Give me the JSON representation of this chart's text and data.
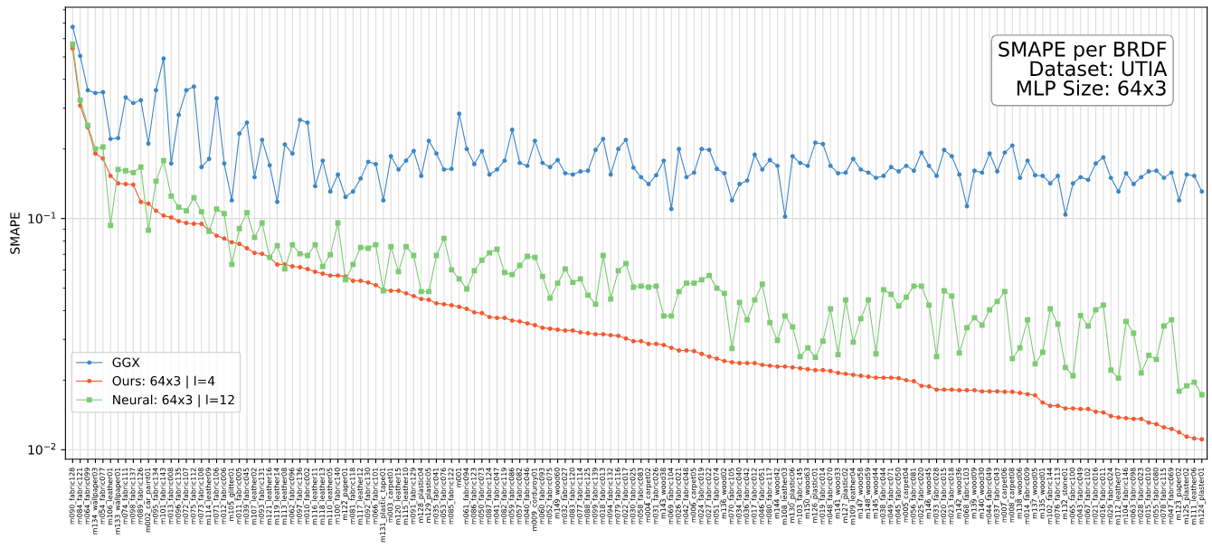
{
  "chart_data": {
    "type": "line",
    "title": "SMAPE per BRDF\nDataset: UTIA\nMLP Size: 64x3",
    "ylabel": "SMAPE",
    "categories": [
      "m090_fabric128",
      "m084_fabric121",
      "m064_fabric099",
      "m134_wallpaper03",
      "m054_fabric077",
      "m106_leather01",
      "m133_wallpaper01",
      "m074_fabric111",
      "m098_fabric137",
      "m089_fabric126",
      "m002_car_paint01",
      "m095_fabric134",
      "m101_fabric143",
      "m013_fabric008",
      "m096_fabric135",
      "m072_fabric107",
      "m075_fabric112",
      "m073_fabric108",
      "m114_leather09",
      "m071_fabric106",
      "m012_fabric006",
      "m105_glitter01",
      "m011_fabric005",
      "m039_fabric045",
      "m107_leather02",
      "m093_fabric131",
      "m121_leather16",
      "m119_leather14",
      "m113_leather08",
      "m062_fabric096",
      "m097_fabric136",
      "m010_fabric002",
      "m116_leather11",
      "m118_leather13",
      "m110_leather05",
      "m100_fabric140",
      "m122_paper01",
      "m081_fabric118",
      "m117_leather12",
      "m092_fabric130",
      "m066_fabric101",
      "m131_plastic_tape01",
      "m003_carpet01",
      "m120_leather15",
      "m115_leather10",
      "m091_fabric129",
      "m128_plastic04",
      "m129_plastic05",
      "m035_fabric041",
      "m053_fabric076",
      "m085_fabric122",
      "m001",
      "m061_fabric094",
      "m086_fabric123",
      "m050_fabric073",
      "m087_fabric124",
      "m041_fabric047",
      "m082_fabric119",
      "m059_fabric086",
      "m057_fabric082",
      "m040_fabric046",
      "m009_corduroy01",
      "m060_fabric093",
      "m052_fabric075",
      "m149_wood60",
      "m032_fabric027",
      "m083_fabric120",
      "m077_fabric114",
      "m088_fabric125",
      "m099_fabric139",
      "m018_fabric013",
      "m094_fabric132",
      "m079_fabric116",
      "m022_fabric017",
      "m030_fabric025",
      "m058_fabric083",
      "m004_carpet02",
      "m031_fabric026",
      "m143_wood38",
      "m069_fabric104",
      "m026_fabric021",
      "m042_fabric048",
      "m006_carpet05",
      "m024_fabric019",
      "m027_fabric022",
      "m051_fabric074",
      "m136_wood02",
      "m070_fabric105",
      "m034_fabric040",
      "m036_fabric042",
      "m017_fabric012",
      "m046_fabric051",
      "m080_fabric117",
      "m144_wood42",
      "m108_leather03",
      "m130_plastic06",
      "m103_fabric145",
      "m150_wood63",
      "m126_plastic01",
      "m019_fabric014",
      "m048_fabric070",
      "m141_wood33",
      "m127_plastic02",
      "m109_leather04",
      "m147_wood58",
      "m148_wood59",
      "m145_wood44",
      "m038_fabric044",
      "m049_fabric071",
      "m045_fabric050",
      "m005_carpet04",
      "m056_fabric081",
      "m025_fabric020",
      "m146_wood45",
      "m033_fabric028",
      "m020_fabric015",
      "m023_fabric018",
      "m142_wood36",
      "m068_fabric103",
      "m139_wood09",
      "m140_wood30",
      "m044_fabric049",
      "m037_fabric043",
      "m007_carpet06",
      "m008_carpet08",
      "m138_wood06",
      "m014_fabric009",
      "m137_wood05",
      "m135_wood01",
      "m102_fabric144",
      "m076_fabric113",
      "m132_stone01",
      "m065_fabric100",
      "m043_fabric049",
      "m067_fabric102",
      "m021_fabric016",
      "m016_fabric011",
      "m029_fabric024",
      "m112_leather07",
      "m104_fabric146",
      "m063_fabric098",
      "m028_fabric023",
      "m015_fabric010",
      "m055_fabric080",
      "m078_fabric115",
      "m047_fabric069",
      "m123_paper02",
      "m125_plaster02",
      "m111_leather06",
      "m124_plaster01"
    ],
    "series": [
      {
        "name": "GGX",
        "color": "#3b86c6",
        "marker": "circle",
        "values": [
          0.674,
          0.505,
          0.359,
          0.349,
          0.352,
          0.221,
          0.223,
          0.334,
          0.316,
          0.325,
          0.211,
          0.359,
          0.492,
          0.173,
          0.281,
          0.359,
          0.372,
          0.167,
          0.181,
          0.331,
          0.173,
          0.12,
          0.233,
          0.26,
          0.151,
          0.219,
          0.17,
          0.118,
          0.209,
          0.191,
          0.267,
          0.26,
          0.138,
          0.178,
          0.131,
          0.155,
          0.124,
          0.131,
          0.149,
          0.176,
          0.172,
          0.12,
          0.186,
          0.163,
          0.178,
          0.196,
          0.153,
          0.217,
          0.191,
          0.163,
          0.164,
          0.284,
          0.2,
          0.172,
          0.196,
          0.155,
          0.163,
          0.178,
          0.242,
          0.174,
          0.169,
          0.217,
          0.174,
          0.167,
          0.179,
          0.157,
          0.155,
          0.16,
          0.161,
          0.198,
          0.221,
          0.155,
          0.2,
          0.219,
          0.166,
          0.151,
          0.141,
          0.154,
          0.178,
          0.11,
          0.2,
          0.151,
          0.158,
          0.2,
          0.198,
          0.164,
          0.157,
          0.12,
          0.141,
          0.146,
          0.189,
          0.163,
          0.179,
          0.169,
          0.102,
          0.186,
          0.174,
          0.169,
          0.213,
          0.21,
          0.169,
          0.157,
          0.158,
          0.181,
          0.163,
          0.158,
          0.15,
          0.153,
          0.167,
          0.16,
          0.169,
          0.161,
          0.193,
          0.169,
          0.153,
          0.198,
          0.186,
          0.155,
          0.113,
          0.161,
          0.158,
          0.191,
          0.16,
          0.193,
          0.207,
          0.15,
          0.178,
          0.154,
          0.153,
          0.142,
          0.153,
          0.104,
          0.142,
          0.151,
          0.147,
          0.173,
          0.184,
          0.15,
          0.131,
          0.157,
          0.141,
          0.151,
          0.16,
          0.161,
          0.15,
          0.158,
          0.12,
          0.155,
          0.153,
          0.131
        ]
      },
      {
        "name": "Ours: 64x3 | l=4",
        "color": "#f4592f",
        "marker": "circle",
        "values": [
          0.543,
          0.308,
          0.248,
          0.191,
          0.182,
          0.153,
          0.142,
          0.141,
          0.14,
          0.118,
          0.116,
          0.108,
          0.103,
          0.101,
          0.0974,
          0.0957,
          0.0949,
          0.0949,
          0.089,
          0.0843,
          0.082,
          0.079,
          0.0777,
          0.0744,
          0.071,
          0.0704,
          0.0679,
          0.0633,
          0.0633,
          0.0621,
          0.0616,
          0.0605,
          0.0589,
          0.0578,
          0.0567,
          0.0567,
          0.0562,
          0.0538,
          0.0538,
          0.0529,
          0.0515,
          0.0492,
          0.0487,
          0.0487,
          0.0475,
          0.0462,
          0.0449,
          0.0445,
          0.043,
          0.0426,
          0.0422,
          0.0415,
          0.0407,
          0.0393,
          0.039,
          0.0375,
          0.0372,
          0.0372,
          0.0362,
          0.0359,
          0.0352,
          0.0346,
          0.0337,
          0.0334,
          0.0331,
          0.0328,
          0.0328,
          0.0322,
          0.0319,
          0.0316,
          0.0316,
          0.0313,
          0.0311,
          0.0303,
          0.0295,
          0.0295,
          0.0287,
          0.0287,
          0.0284,
          0.0276,
          0.0269,
          0.0269,
          0.0267,
          0.026,
          0.0253,
          0.0248,
          0.0242,
          0.0239,
          0.0237,
          0.0237,
          0.0237,
          0.0233,
          0.0231,
          0.0229,
          0.0229,
          0.0227,
          0.0225,
          0.0223,
          0.0221,
          0.0221,
          0.0219,
          0.0215,
          0.0213,
          0.0211,
          0.0209,
          0.0207,
          0.0205,
          0.0205,
          0.0205,
          0.0204,
          0.02,
          0.0198,
          0.0189,
          0.0188,
          0.0182,
          0.0182,
          0.0182,
          0.0181,
          0.0181,
          0.0181,
          0.0179,
          0.0179,
          0.0179,
          0.0178,
          0.0178,
          0.0176,
          0.0174,
          0.0172,
          0.016,
          0.0155,
          0.0155,
          0.0151,
          0.0151,
          0.015,
          0.015,
          0.0146,
          0.0145,
          0.014,
          0.0138,
          0.0137,
          0.0136,
          0.0136,
          0.0131,
          0.0129,
          0.0125,
          0.0123,
          0.0119,
          0.0114,
          0.0112,
          0.0111
        ]
      },
      {
        "name": "Neural: 64x3 | l=12",
        "color": "#7ccb72",
        "marker": "square",
        "values": [
          0.567,
          0.325,
          0.253,
          0.2,
          0.204,
          0.0934,
          0.163,
          0.161,
          0.158,
          0.167,
          0.089,
          0.145,
          0.178,
          0.125,
          0.112,
          0.108,
          0.123,
          0.107,
          0.088,
          0.11,
          0.105,
          0.0633,
          0.0905,
          0.106,
          0.0828,
          0.0957,
          0.0679,
          0.0763,
          0.0605,
          0.077,
          0.0704,
          0.0692,
          0.077,
          0.0621,
          0.0698,
          0.0957,
          0.0543,
          0.0633,
          0.075,
          0.0744,
          0.077,
          0.0487,
          0.0756,
          0.0589,
          0.0756,
          0.0692,
          0.0483,
          0.0483,
          0.0692,
          0.082,
          0.06,
          0.0548,
          0.0496,
          0.0595,
          0.066,
          0.071,
          0.0737,
          0.0584,
          0.0572,
          0.0627,
          0.0686,
          0.0679,
          0.0562,
          0.0453,
          0.0525,
          0.0605,
          0.0529,
          0.0548,
          0.0466,
          0.0426,
          0.0692,
          0.0449,
          0.0595,
          0.0639,
          0.0505,
          0.051,
          0.0505,
          0.051,
          0.0379,
          0.0379,
          0.0483,
          0.0525,
          0.0525,
          0.0543,
          0.0567,
          0.05,
          0.0475,
          0.0274,
          0.0434,
          0.0365,
          0.0445,
          0.052,
          0.0355,
          0.0297,
          0.0379,
          0.034,
          0.0253,
          0.0276,
          0.0251,
          0.0295,
          0.0407,
          0.0258,
          0.0445,
          0.0292,
          0.0369,
          0.0445,
          0.026,
          0.0492,
          0.047,
          0.0419,
          0.0457,
          0.051,
          0.051,
          0.0422,
          0.0253,
          0.0487,
          0.0462,
          0.0262,
          0.0337,
          0.0372,
          0.0346,
          0.0403,
          0.0438,
          0.0483,
          0.0248,
          0.0276,
          0.0365,
          0.0235,
          0.0264,
          0.0407,
          0.0349,
          0.0227,
          0.0209,
          0.0381,
          0.0343,
          0.0403,
          0.0422,
          0.0221,
          0.0204,
          0.0359,
          0.0319,
          0.0215,
          0.0256,
          0.0246,
          0.0343,
          0.0365,
          0.0179,
          0.0189,
          0.0196,
          0.0173
        ]
      }
    ],
    "log": "y",
    "ylim": [
      0.0091,
      0.82
    ],
    "yticks": [
      {
        "value": 0.01,
        "label": "10$^{−2}$"
      },
      {
        "value": 0.02,
        "label": null
      },
      {
        "value": 0.03,
        "label": null
      },
      {
        "value": 0.04,
        "label": null
      },
      {
        "value": 0.05,
        "label": null
      },
      {
        "value": 0.06,
        "label": null
      },
      {
        "value": 0.07,
        "label": null
      },
      {
        "value": 0.08,
        "label": null
      },
      {
        "value": 0.09,
        "label": null
      },
      {
        "value": 0.1,
        "label": "10$^{−1}$"
      },
      {
        "value": 0.2,
        "label": null
      },
      {
        "value": 0.3,
        "label": null
      },
      {
        "value": 0.4,
        "label": null
      },
      {
        "value": 0.5,
        "label": null
      },
      {
        "value": 0.6,
        "label": null
      },
      {
        "value": 0.7,
        "label": null
      },
      {
        "value": 0.8,
        "label": null
      }
    ],
    "grid": true,
    "legend": "bottom left",
    "line_style": "solid"
  }
}
